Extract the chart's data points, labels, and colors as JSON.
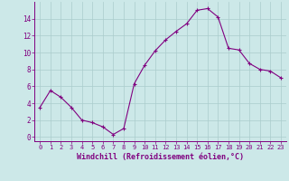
{
  "x": [
    0,
    1,
    2,
    3,
    4,
    5,
    6,
    7,
    8,
    9,
    10,
    11,
    12,
    13,
    14,
    15,
    16,
    17,
    18,
    19,
    20,
    21,
    22,
    23
  ],
  "y": [
    3.5,
    5.5,
    4.7,
    3.5,
    2.0,
    1.7,
    1.2,
    0.3,
    1.0,
    6.3,
    8.5,
    10.2,
    11.5,
    12.5,
    13.4,
    15.0,
    15.2,
    14.2,
    10.5,
    10.3,
    8.7,
    8.0,
    7.8,
    7.0
  ],
  "line_color": "#800080",
  "marker": "+",
  "marker_color": "#800080",
  "bg_color": "#cce8e8",
  "grid_color": "#aacccc",
  "xlabel": "Windchill (Refroidissement éolien,°C)",
  "xlabel_color": "#800080",
  "tick_color": "#800080",
  "ylim": [
    -0.5,
    16
  ],
  "xlim": [
    -0.5,
    23.5
  ],
  "yticks": [
    0,
    2,
    4,
    6,
    8,
    10,
    12,
    14
  ],
  "xticks": [
    0,
    1,
    2,
    3,
    4,
    5,
    6,
    7,
    8,
    9,
    10,
    11,
    12,
    13,
    14,
    15,
    16,
    17,
    18,
    19,
    20,
    21,
    22,
    23
  ]
}
